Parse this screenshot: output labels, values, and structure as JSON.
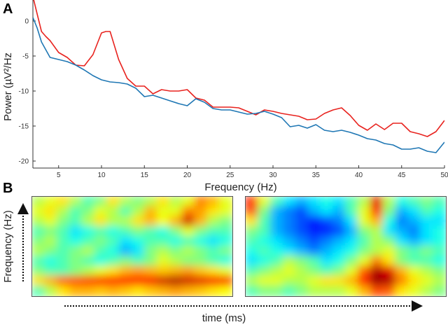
{
  "panel_labels": {
    "a": "A",
    "b": "B"
  },
  "chart_data": [
    {
      "type": "line",
      "xlabel": "Frequency (Hz)",
      "ylabel": "Power (µV²/Hz",
      "xlim": [
        2,
        50
      ],
      "ylim": [
        -21,
        3
      ],
      "x_ticks": [
        5,
        10,
        15,
        20,
        25,
        30,
        35,
        40,
        45,
        50
      ],
      "y_ticks": [
        0,
        -5,
        -10,
        -15,
        -20
      ],
      "grid": false,
      "series": [
        {
          "color": "#e8231f",
          "x": [
            2,
            2.5,
            3,
            3.5,
            4,
            5,
            6,
            7,
            8,
            9,
            10,
            10.5,
            11,
            12,
            13,
            14,
            15,
            16,
            17,
            18,
            19,
            20,
            21,
            22,
            23,
            24,
            25,
            26,
            27,
            28,
            29,
            30,
            31,
            32,
            33,
            34,
            35,
            36,
            37,
            38,
            39,
            40,
            41,
            42,
            43,
            44,
            45,
            46,
            47,
            48,
            49,
            50
          ],
          "values": [
            3.5,
            1,
            -1.5,
            -2.2,
            -2.8,
            -4.5,
            -5.2,
            -6.3,
            -6.4,
            -4.8,
            -1.7,
            -1.5,
            -1.5,
            -5.5,
            -8.2,
            -9.3,
            -9.3,
            -10.4,
            -9.8,
            -10,
            -10,
            -9.8,
            -11,
            -11.3,
            -12.3,
            -12.3,
            -12.3,
            -12.4,
            -12.9,
            -13.4,
            -12.7,
            -12.9,
            -13.2,
            -13.4,
            -13.6,
            -14.1,
            -14,
            -13.2,
            -12.7,
            -12.4,
            -13.5,
            -14.9,
            -15.6,
            -14.7,
            -15.5,
            -14.6,
            -14.6,
            -15.8,
            -16.1,
            -16.5,
            -15.8,
            -14.2
          ]
        },
        {
          "color": "#1f77b4",
          "x": [
            2,
            2.5,
            3,
            4,
            5,
            6,
            7,
            8,
            9,
            10,
            11,
            12,
            13,
            14,
            15,
            16,
            17,
            18,
            19,
            20,
            21,
            22,
            23,
            24,
            25,
            26,
            27,
            28,
            29,
            30,
            31,
            32,
            33,
            34,
            35,
            36,
            37,
            38,
            39,
            40,
            41,
            42,
            43,
            44,
            45,
            46,
            47,
            48,
            49,
            50
          ],
          "values": [
            0.5,
            -1,
            -3,
            -5.2,
            -5.5,
            -5.8,
            -6.3,
            -7,
            -7.8,
            -8.4,
            -8.7,
            -8.8,
            -9,
            -9.6,
            -10.8,
            -10.6,
            -11,
            -11.4,
            -11.8,
            -12.1,
            -11.1,
            -11.6,
            -12.5,
            -12.7,
            -12.7,
            -13,
            -13.3,
            -13.2,
            -12.9,
            -13.3,
            -13.8,
            -15.1,
            -14.9,
            -15.3,
            -14.8,
            -15.6,
            -15.8,
            -15.6,
            -15.9,
            -16.3,
            -16.8,
            -17,
            -17.5,
            -17.7,
            -18.3,
            -18.3,
            -18.1,
            -18.6,
            -18.8,
            -17.3
          ]
        }
      ]
    },
    {
      "type": "heatmap",
      "xlabel": "time (ms)",
      "ylabel": "Frequency (Hz)",
      "colormap": "jet",
      "panels": [
        {
          "rows": [
            [
              0.55,
              0.6,
              0.65,
              0.55,
              0.45,
              0.5,
              0.65,
              0.55,
              0.5,
              0.55,
              0.65,
              0.55,
              0.6,
              0.75,
              0.7,
              0.6
            ],
            [
              0.6,
              0.65,
              0.55,
              0.45,
              0.5,
              0.6,
              0.55,
              0.45,
              0.55,
              0.7,
              0.6,
              0.6,
              0.75,
              0.72,
              0.65,
              0.6
            ],
            [
              0.55,
              0.6,
              0.5,
              0.45,
              0.55,
              0.65,
              0.55,
              0.55,
              0.65,
              0.7,
              0.62,
              0.7,
              0.92,
              0.7,
              0.55,
              0.5
            ],
            [
              0.45,
              0.5,
              0.45,
              0.35,
              0.4,
              0.45,
              0.4,
              0.45,
              0.5,
              0.45,
              0.4,
              0.5,
              0.6,
              0.5,
              0.45,
              0.45
            ],
            [
              0.5,
              0.55,
              0.45,
              0.4,
              0.45,
              0.5,
              0.45,
              0.35,
              0.4,
              0.45,
              0.45,
              0.4,
              0.45,
              0.4,
              0.35,
              0.4
            ],
            [
              0.55,
              0.5,
              0.45,
              0.5,
              0.55,
              0.45,
              0.4,
              0.3,
              0.35,
              0.5,
              0.55,
              0.5,
              0.55,
              0.5,
              0.45,
              0.5
            ],
            [
              0.45,
              0.4,
              0.45,
              0.5,
              0.45,
              0.4,
              0.45,
              0.5,
              0.45,
              0.5,
              0.6,
              0.55,
              0.5,
              0.5,
              0.45,
              0.4
            ],
            [
              0.5,
              0.45,
              0.45,
              0.5,
              0.55,
              0.6,
              0.65,
              0.7,
              0.72,
              0.7,
              0.68,
              0.7,
              0.72,
              0.68,
              0.65,
              0.6
            ],
            [
              0.65,
              0.7,
              0.78,
              0.8,
              0.82,
              0.85,
              0.85,
              0.85,
              0.85,
              0.88,
              0.92,
              0.95,
              0.92,
              0.9,
              0.88,
              0.85
            ],
            [
              0.45,
              0.55,
              0.65,
              0.7,
              0.7,
              0.68,
              0.7,
              0.68,
              0.65,
              0.68,
              0.7,
              0.72,
              0.7,
              0.68,
              0.65,
              0.62
            ]
          ]
        },
        {
          "rows": [
            [
              0.85,
              0.6,
              0.45,
              0.35,
              0.3,
              0.35,
              0.4,
              0.35,
              0.45,
              0.55,
              0.9,
              0.55,
              0.4,
              0.45,
              0.5,
              0.45
            ],
            [
              0.8,
              0.5,
              0.3,
              0.25,
              0.2,
              0.3,
              0.35,
              0.3,
              0.45,
              0.6,
              0.85,
              0.5,
              0.3,
              0.35,
              0.45,
              0.4
            ],
            [
              0.65,
              0.45,
              0.3,
              0.25,
              0.2,
              0.15,
              0.2,
              0.25,
              0.35,
              0.6,
              0.7,
              0.4,
              0.25,
              0.3,
              0.35,
              0.35
            ],
            [
              0.5,
              0.45,
              0.3,
              0.25,
              0.2,
              0.15,
              0.15,
              0.2,
              0.3,
              0.5,
              0.55,
              0.35,
              0.3,
              0.25,
              0.35,
              0.4
            ],
            [
              0.45,
              0.4,
              0.35,
              0.3,
              0.25,
              0.2,
              0.25,
              0.3,
              0.35,
              0.45,
              0.55,
              0.5,
              0.35,
              0.3,
              0.35,
              0.4
            ],
            [
              0.4,
              0.45,
              0.4,
              0.35,
              0.3,
              0.25,
              0.3,
              0.35,
              0.4,
              0.5,
              0.55,
              0.6,
              0.5,
              0.45,
              0.5,
              0.45
            ],
            [
              0.35,
              0.4,
              0.45,
              0.55,
              0.5,
              0.45,
              0.35,
              0.4,
              0.5,
              0.6,
              0.75,
              0.65,
              0.5,
              0.45,
              0.45,
              0.4
            ],
            [
              0.45,
              0.5,
              0.55,
              0.6,
              0.55,
              0.5,
              0.45,
              0.5,
              0.6,
              0.78,
              0.95,
              0.9,
              0.7,
              0.6,
              0.55,
              0.5
            ],
            [
              0.55,
              0.6,
              0.6,
              0.55,
              0.55,
              0.6,
              0.65,
              0.65,
              0.7,
              0.85,
              0.97,
              0.95,
              0.75,
              0.65,
              0.6,
              0.55
            ],
            [
              0.45,
              0.5,
              0.5,
              0.45,
              0.5,
              0.55,
              0.55,
              0.55,
              0.6,
              0.7,
              0.8,
              0.78,
              0.65,
              0.6,
              0.55,
              0.5
            ]
          ]
        }
      ]
    }
  ]
}
